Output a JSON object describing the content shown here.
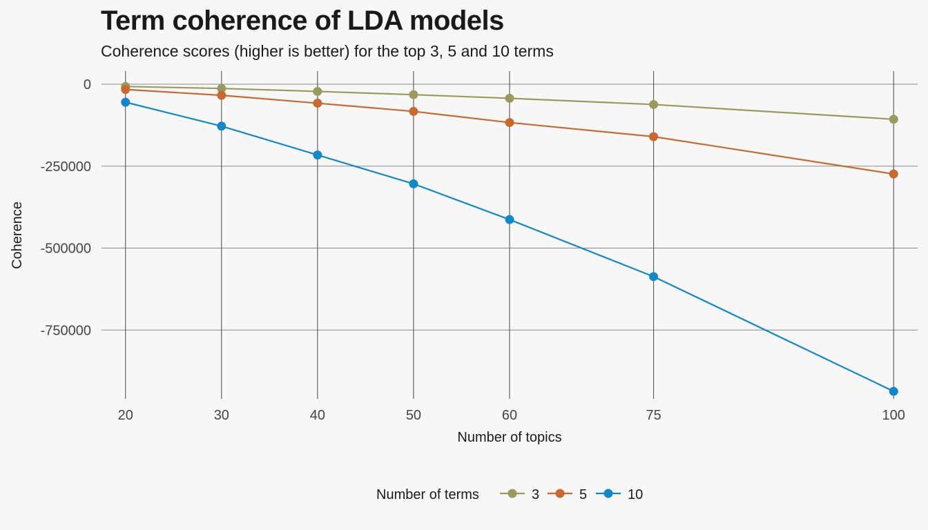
{
  "chart_data": {
    "type": "line",
    "title": "Term coherence of LDA models",
    "subtitle": "Coherence scores (higher is better) for the top 3, 5 and 10 terms",
    "xlabel": "Number of topics",
    "ylabel": "Coherence",
    "x": [
      20,
      30,
      40,
      50,
      60,
      75,
      100
    ],
    "x_ticks": [
      "20",
      "30",
      "40",
      "50",
      "60",
      "75",
      "100"
    ],
    "xlim": [
      17.5,
      102.5
    ],
    "y_ticks": [
      0,
      -250000,
      -500000,
      -750000
    ],
    "y_tick_labels": [
      "0",
      "-250000",
      "-500000",
      "-750000"
    ],
    "ylim": [
      -960000,
      40000
    ],
    "grid": true,
    "legend": {
      "title": "Number of terms",
      "position": "bottom"
    },
    "series": [
      {
        "name": "3",
        "color": "#9a9a5e",
        "values": [
          -7000,
          -13000,
          -22000,
          -32000,
          -43000,
          -62000,
          -107000
        ]
      },
      {
        "name": "5",
        "color": "#c8692f",
        "values": [
          -16000,
          -34000,
          -58000,
          -83000,
          -117000,
          -160000,
          -274000
        ]
      },
      {
        "name": "10",
        "color": "#1188c8",
        "values": [
          -55000,
          -128000,
          -216000,
          -304000,
          -413000,
          -587000,
          -937000
        ]
      }
    ]
  }
}
